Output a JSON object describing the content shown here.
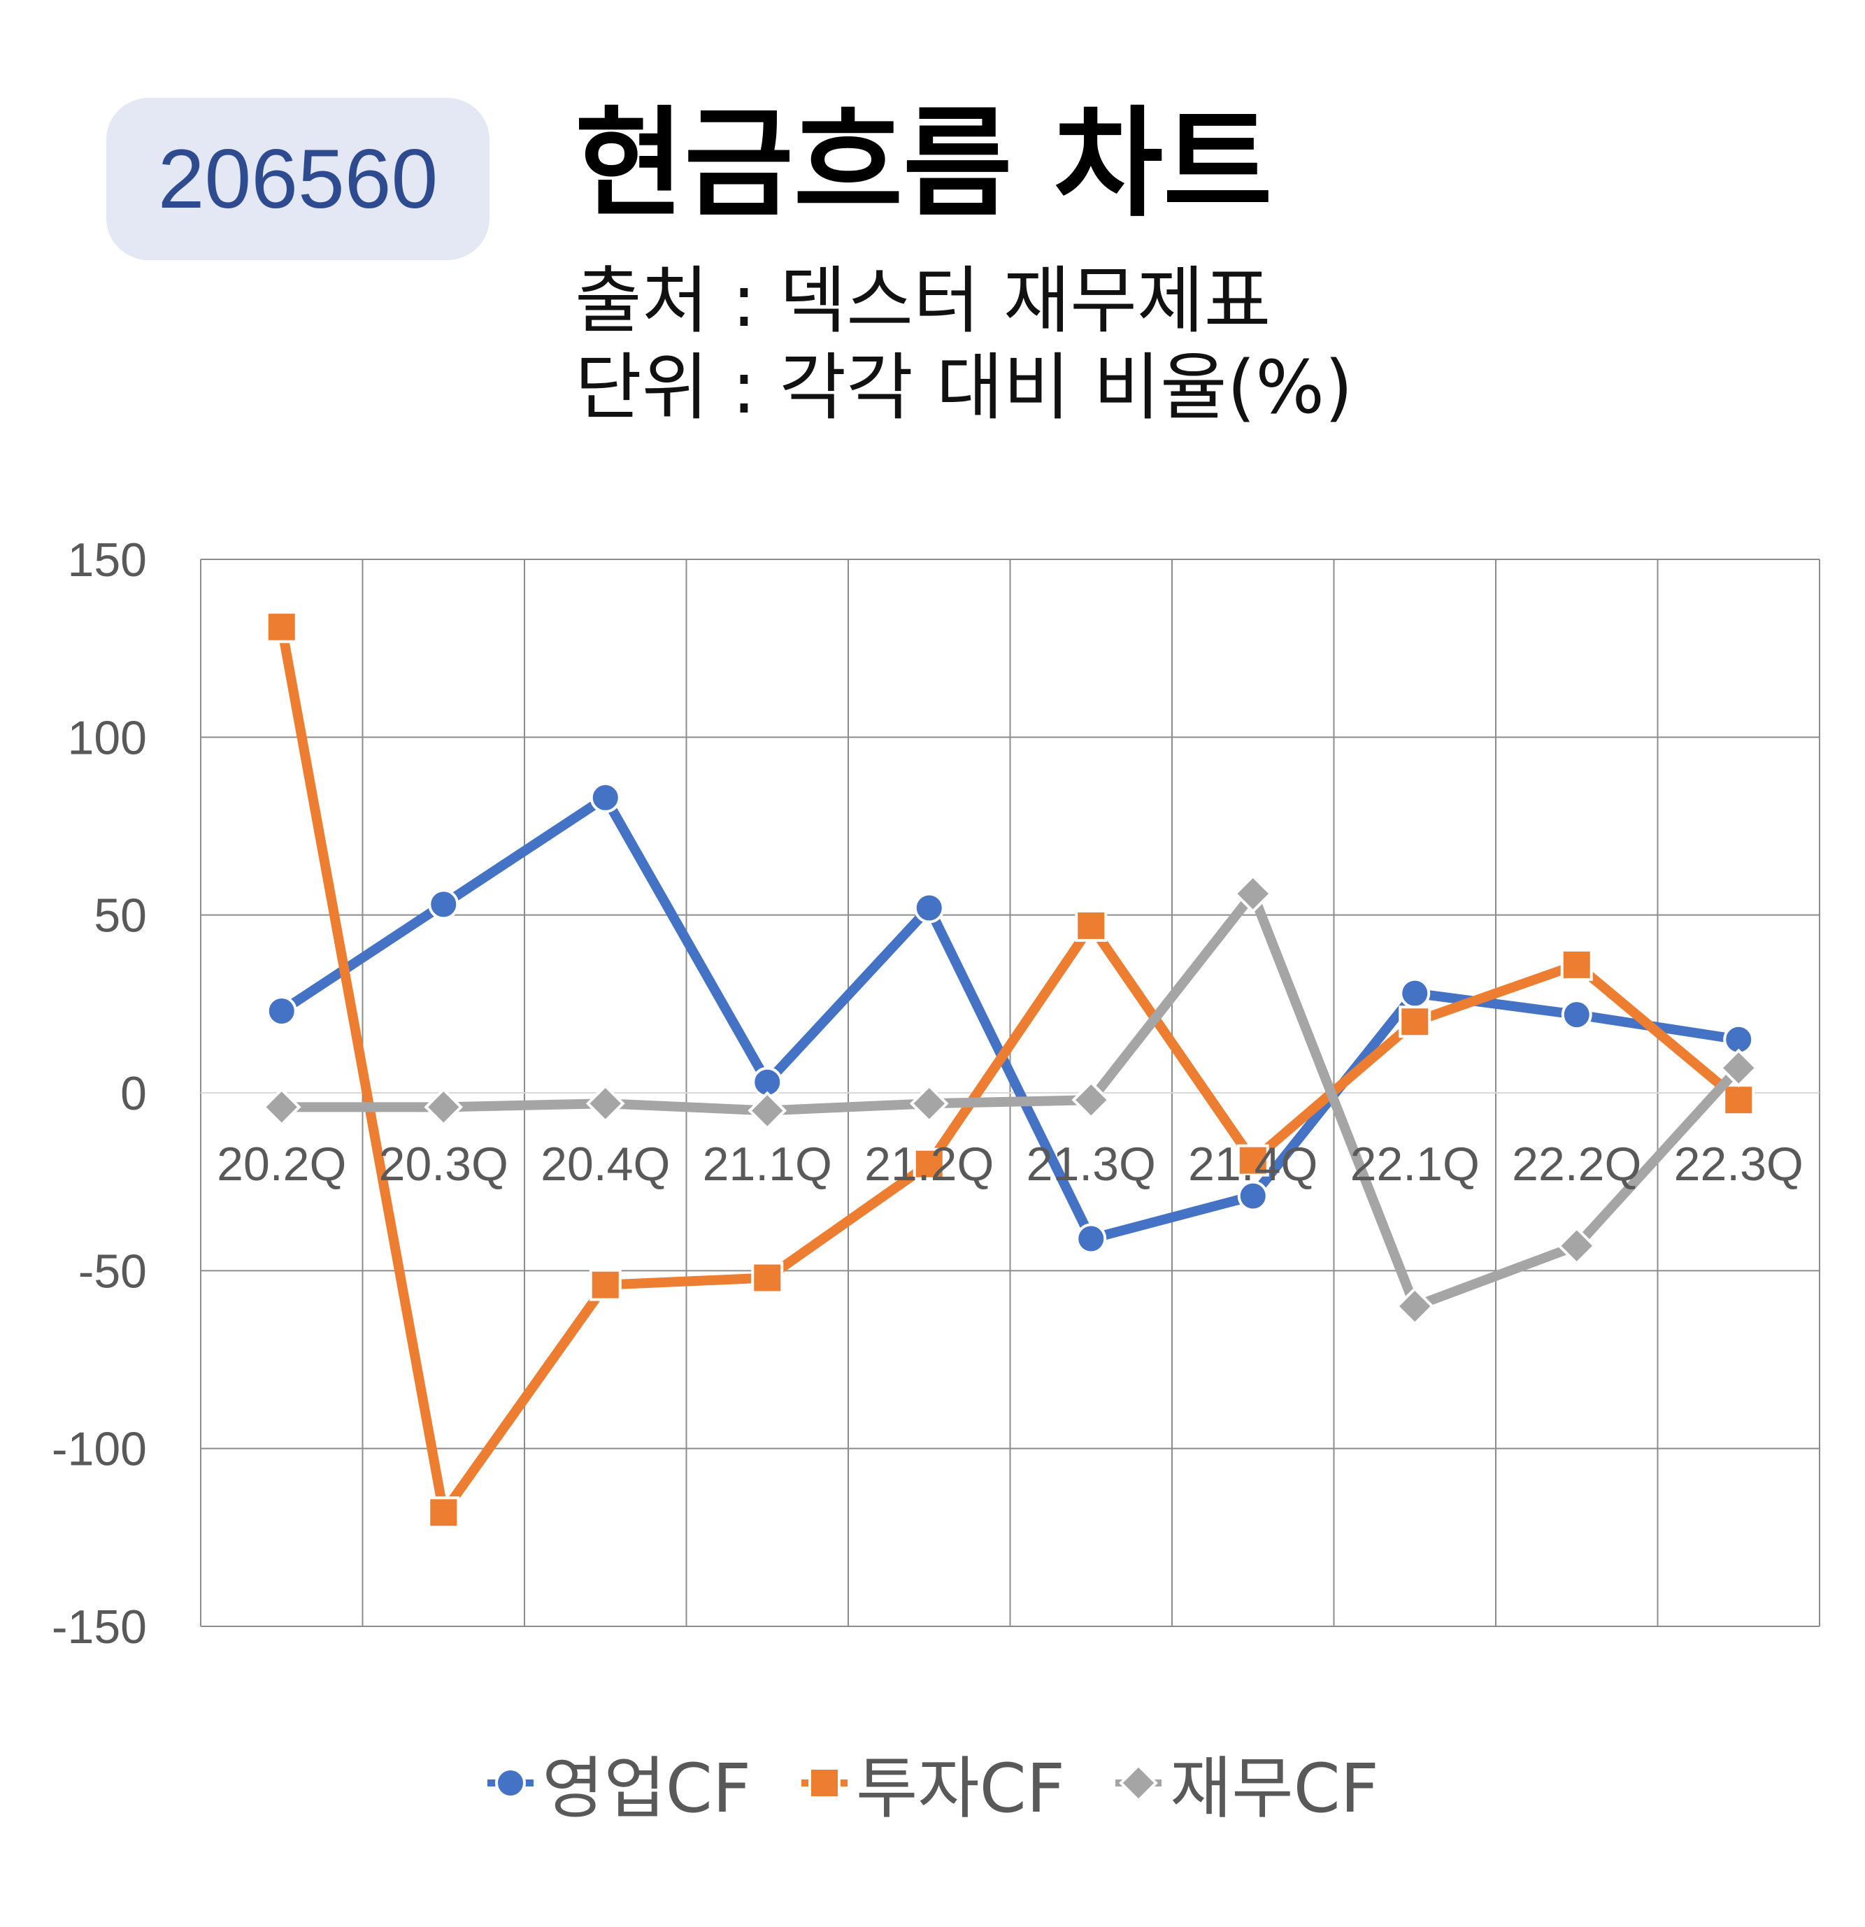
{
  "header": {
    "code": "206560",
    "title": "현금흐름 차트",
    "source": "출처 : 덱스터 재무제표",
    "unit": "단위 : 각각 대비 비율(%)"
  },
  "chart_data": {
    "type": "line",
    "categories": [
      "20.2Q",
      "20.3Q",
      "20.4Q",
      "21.1Q",
      "21.2Q",
      "21.3Q",
      "21.4Q",
      "22.1Q",
      "22.2Q",
      "22.3Q"
    ],
    "y_ticks": [
      "150",
      "100",
      "50",
      "0",
      "-50",
      "-100",
      "-150"
    ],
    "ylim": [
      -150,
      150
    ],
    "grid": true,
    "legend_position": "bottom",
    "series": [
      {
        "name": "영업CF",
        "color": "#4472c4",
        "marker": "circle",
        "values": [
          23,
          53,
          83,
          3,
          52,
          -41,
          -29,
          28,
          22,
          15
        ]
      },
      {
        "name": "투자CF",
        "color": "#ed7d31",
        "marker": "square",
        "values": [
          131,
          -118,
          -54,
          -52,
          -20,
          47,
          -19,
          20,
          36,
          -2
        ]
      },
      {
        "name": "재무CF",
        "color": "#a5a5a5",
        "marker": "diamond",
        "values": [
          -4,
          -4,
          -3,
          -5,
          -3,
          -2,
          56,
          -60,
          -43,
          7
        ]
      }
    ]
  }
}
